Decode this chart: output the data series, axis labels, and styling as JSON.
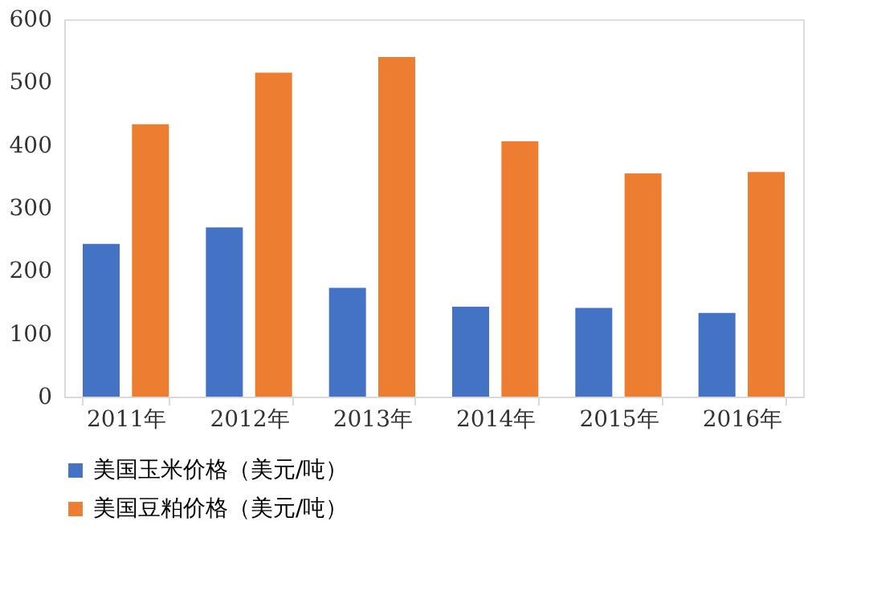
{
  "chart_data": {
    "type": "bar",
    "categories": [
      "2011年",
      "2012年",
      "2013年",
      "2014年",
      "2015年",
      "2016年"
    ],
    "series": [
      {
        "name": "美国玉米价格（美元/吨）",
        "color": "#4472c4",
        "values": [
          243,
          269,
          173,
          143,
          141,
          133
        ]
      },
      {
        "name": "美国豆粕价格（美元/吨）",
        "color": "#ed7d31",
        "values": [
          433,
          515,
          540,
          406,
          355,
          357
        ]
      }
    ],
    "ylim": [
      0,
      600
    ],
    "yticks": [
      0,
      100,
      200,
      300,
      400,
      500,
      600
    ],
    "grid": false,
    "legend": "bottom"
  }
}
